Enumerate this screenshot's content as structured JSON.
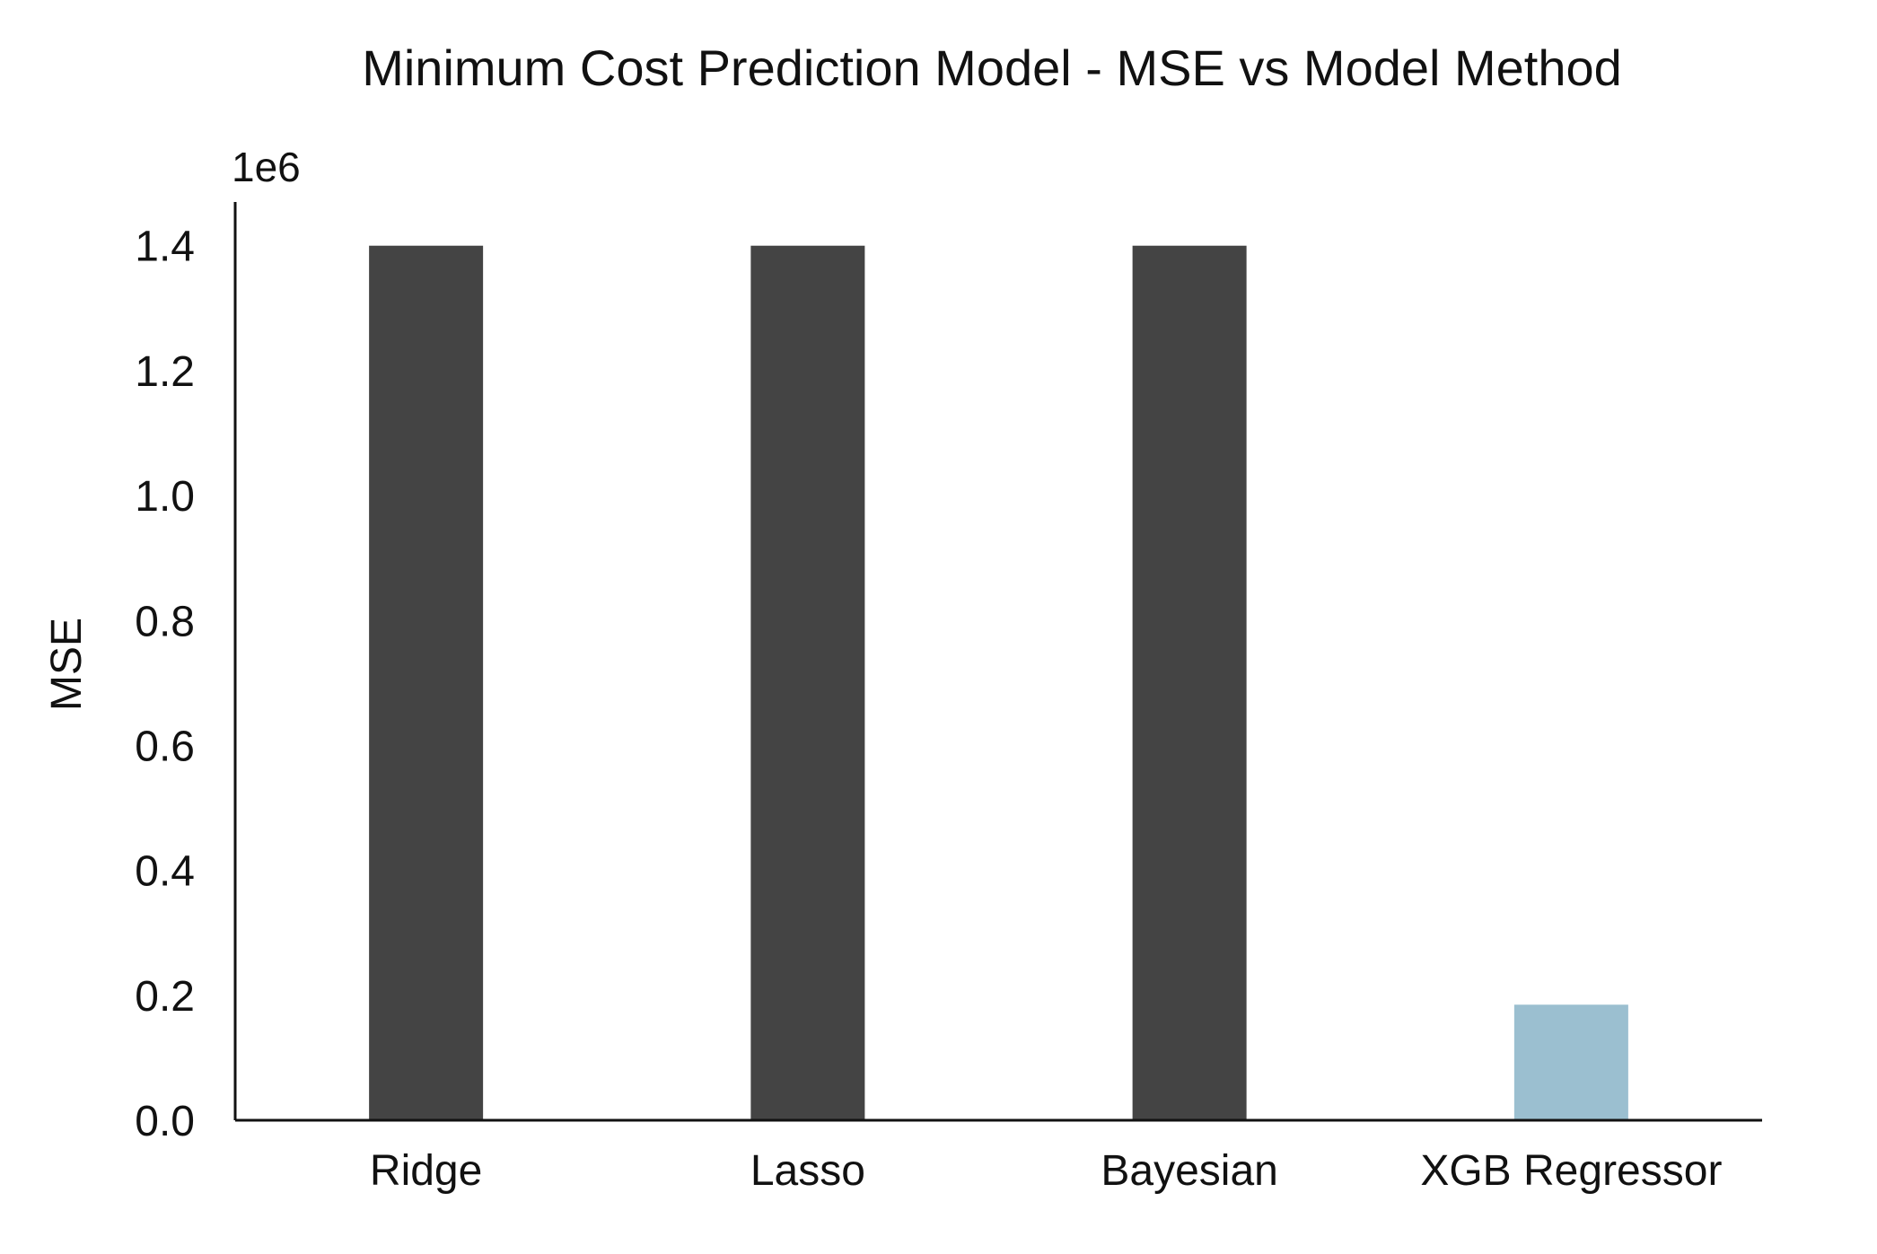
{
  "chart_data": {
    "type": "bar",
    "title": "Minimum Cost Prediction Model - MSE vs Model Method",
    "xlabel": "",
    "ylabel": "MSE",
    "y_offset_label": "1e6",
    "y_scale": 1000000,
    "ylim": [
      0,
      1.47
    ],
    "yticks": [
      "0.0",
      "0.2",
      "0.4",
      "0.6",
      "0.8",
      "1.0",
      "1.2",
      "1.4"
    ],
    "categories": [
      "Ridge",
      "Lasso",
      "Bayesian",
      "XGB Regressor"
    ],
    "values": [
      1.4,
      1.4,
      1.4,
      0.185
    ],
    "colors": [
      "#444444",
      "#444444",
      "#444444",
      "#9bbfd0"
    ],
    "grid": false,
    "legend": "none"
  }
}
